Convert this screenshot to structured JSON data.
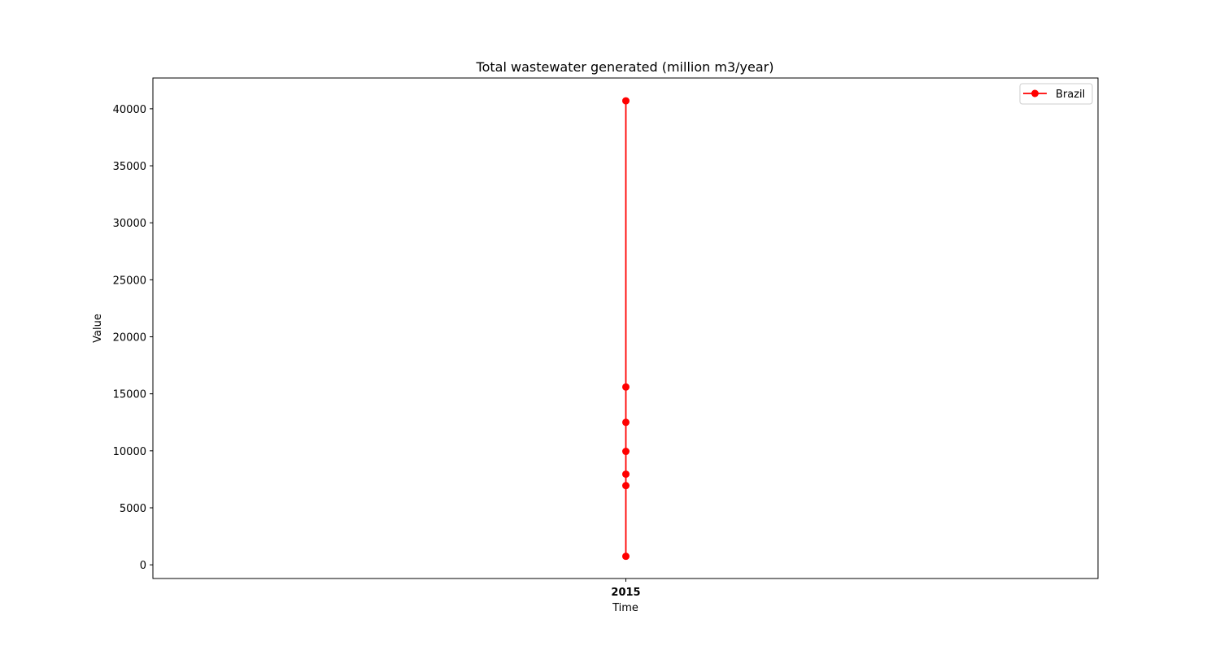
{
  "chart_data": {
    "type": "line",
    "title": "Total wastewater generated (million m3/year)",
    "xlabel": "Time",
    "ylabel": "Value",
    "x_ticks": [
      "2015"
    ],
    "y_ticks": [
      0,
      5000,
      10000,
      15000,
      20000,
      25000,
      30000,
      35000,
      40000
    ],
    "ylim": [
      -1200,
      42700
    ],
    "grid": false,
    "legend_position": "top-right",
    "series": [
      {
        "name": "Brazil",
        "color": "#ff0000",
        "marker": "circle",
        "x": [
          "2015",
          "2015",
          "2015",
          "2015",
          "2015",
          "2015",
          "2015"
        ],
        "values": [
          40700,
          15600,
          12500,
          9950,
          7950,
          6950,
          750
        ]
      }
    ]
  }
}
